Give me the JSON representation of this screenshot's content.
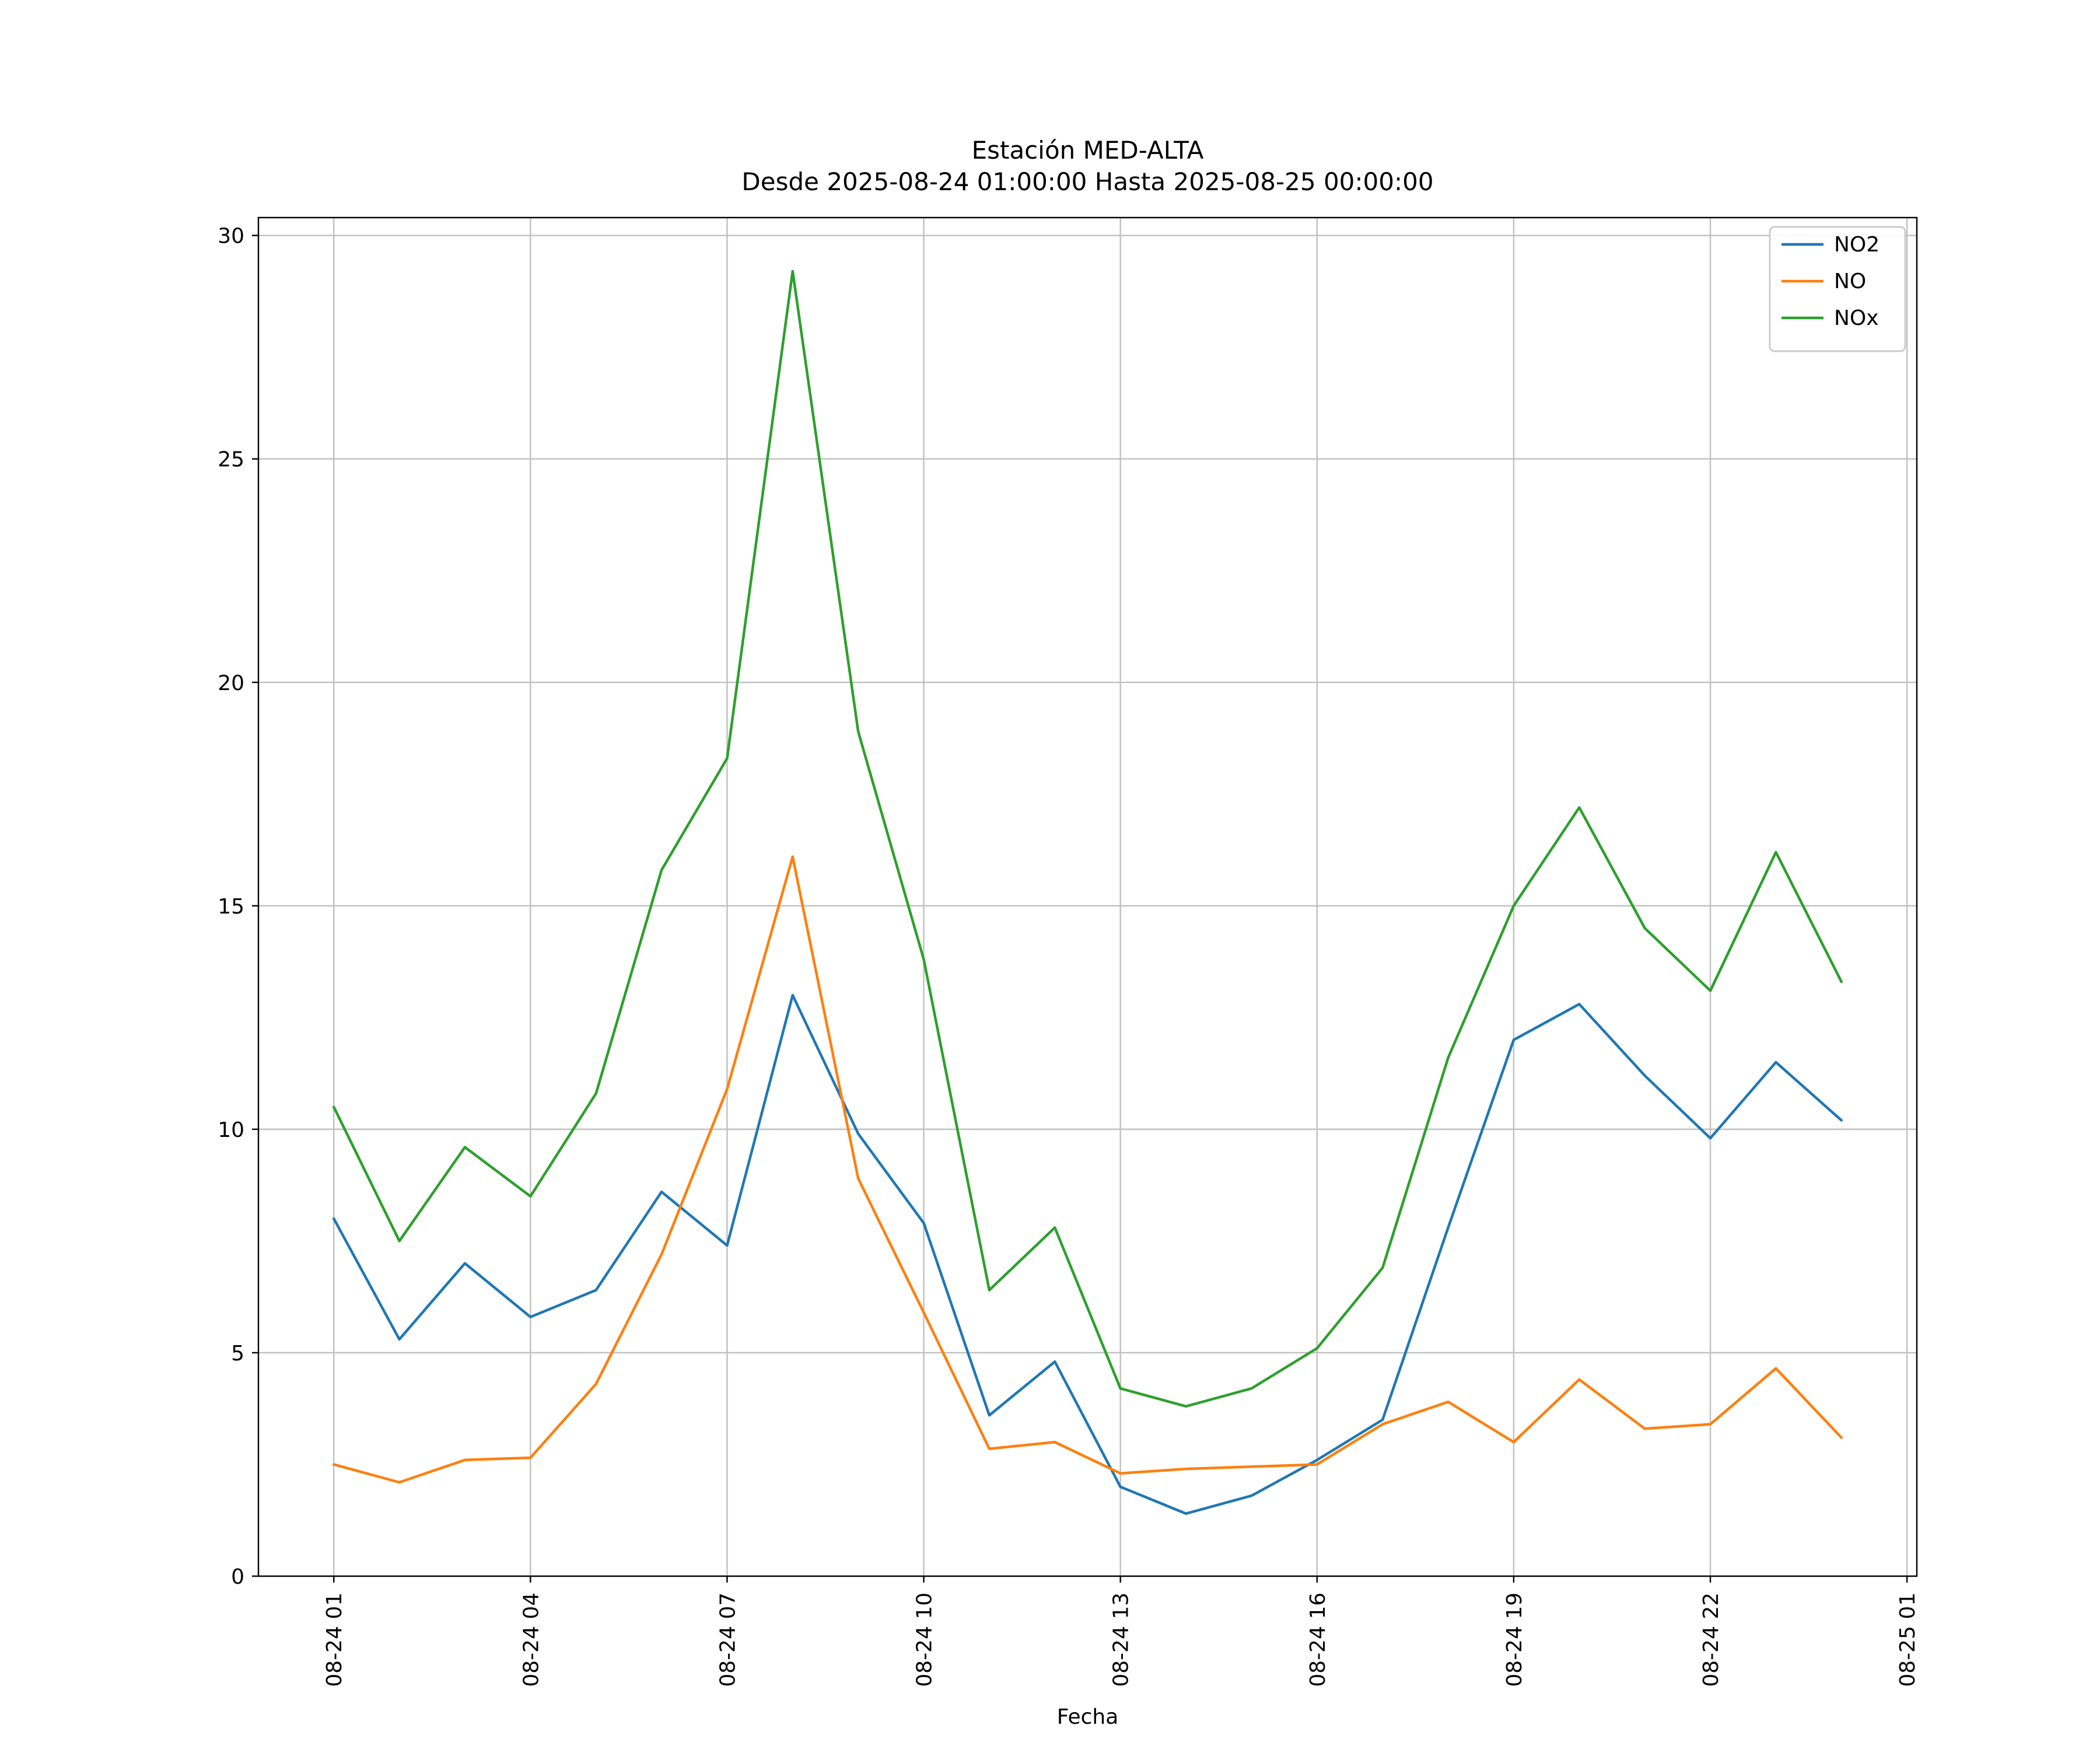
{
  "figure": {
    "title": "Estación MED-ALTA",
    "subtitle": "Desde 2025-08-24 01:00:00 Hasta 2025-08-25 00:00:00",
    "xlabel": "Fecha"
  },
  "chart_data": {
    "type": "line",
    "title": "Estación MED-ALTA",
    "subtitle": "Desde 2025-08-24 01:00:00 Hasta 2025-08-25 00:00:00",
    "xlabel": "Fecha",
    "ylabel": "",
    "grid": true,
    "legend_position": "upper right",
    "background_color": "#ffffff",
    "grid_color": "#c0c0c0",
    "spine_color": "#000000",
    "xlim": [
      -0.15,
      25.15
    ],
    "ylim": [
      0,
      30.4
    ],
    "y_ticks": [
      0,
      5,
      10,
      15,
      20,
      25,
      30
    ],
    "x_tick_hours": [
      1,
      4,
      7,
      10,
      13,
      16,
      19,
      22,
      25
    ],
    "x_tick_labels": [
      "08-24 01",
      "08-24 04",
      "08-24 07",
      "08-24 10",
      "08-24 13",
      "08-24 16",
      "08-24 19",
      "08-24 22",
      "08-25 01"
    ],
    "x_hours": [
      1,
      2,
      3,
      4,
      5,
      6,
      7,
      8,
      9,
      10,
      11,
      12,
      13,
      14,
      15,
      16,
      17,
      18,
      19,
      20,
      21,
      22,
      23,
      24
    ],
    "series": [
      {
        "name": "NO2",
        "color": "#1f77b4",
        "values": [
          8.0,
          5.3,
          7.0,
          5.8,
          6.4,
          8.6,
          7.4,
          13.0,
          9.9,
          7.9,
          3.6,
          4.8,
          2.0,
          1.4,
          1.8,
          2.6,
          3.5,
          7.8,
          12.0,
          12.8,
          11.2,
          9.8,
          11.5,
          10.2
        ]
      },
      {
        "name": "NO",
        "color": "#ff7f0e",
        "values": [
          2.5,
          2.1,
          2.6,
          2.65,
          4.3,
          7.2,
          10.9,
          16.1,
          8.9,
          5.9,
          2.85,
          3.0,
          2.3,
          2.4,
          2.45,
          2.5,
          3.4,
          3.9,
          3.0,
          4.4,
          3.3,
          3.4,
          4.65,
          3.1
        ]
      },
      {
        "name": "NOx",
        "color": "#2ca02c",
        "values": [
          10.5,
          7.5,
          9.6,
          8.5,
          10.8,
          15.8,
          18.3,
          29.2,
          18.9,
          13.8,
          6.4,
          7.8,
          4.2,
          3.8,
          4.2,
          5.1,
          6.9,
          11.6,
          15.0,
          17.2,
          14.5,
          13.1,
          16.2,
          13.3
        ]
      }
    ]
  }
}
